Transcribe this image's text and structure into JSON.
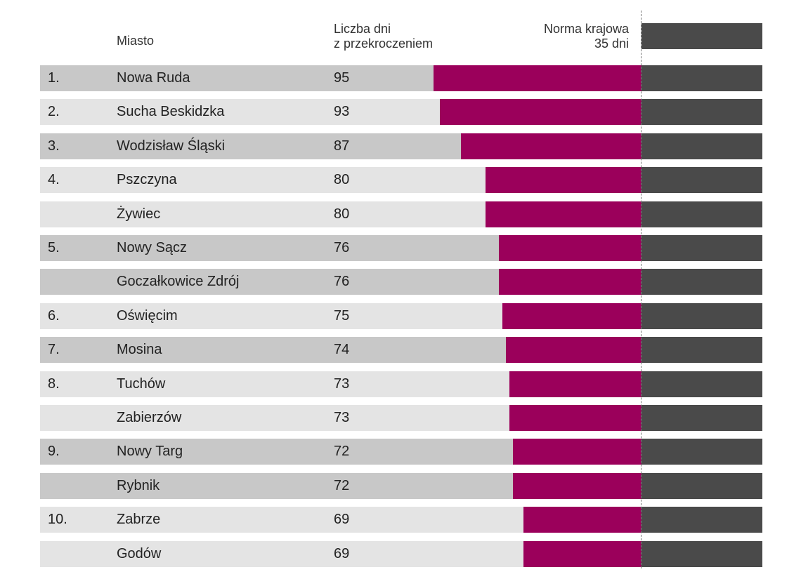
{
  "headers": {
    "city": "Miasto",
    "count": "Liczba dni\nz przekroczeniem",
    "norm": "Norma krajowa\n35 dni"
  },
  "colors": {
    "bar": "#9b005b",
    "norm": "#4a4a4a",
    "row_dark": "#c8c8c8",
    "row_light": "#e4e4e4",
    "reference_line": "#7a7a7a"
  },
  "chart_data": {
    "type": "bar",
    "orientation": "horizontal",
    "title": "",
    "norm_value": 35,
    "norm_label": "Norma krajowa 35 dni",
    "categories": [
      "Nowa Ruda",
      "Sucha Beskidzka",
      "Wodzisław Śląski",
      "Pszczyna",
      "Żywiec",
      "Nowy Sącz",
      "Goczałkowice Zdrój",
      "Oświęcim",
      "Mosina",
      "Tuchów",
      "Zabierzów",
      "Nowy Targ",
      "Rybnik",
      "Zabrze",
      "Godów"
    ],
    "ranks": [
      "1.",
      "2.",
      "3.",
      "4.",
      "",
      "5.",
      "",
      "6.",
      "7.",
      "8.",
      "",
      "9.",
      "",
      "10.",
      ""
    ],
    "values": [
      95,
      93,
      87,
      80,
      80,
      76,
      76,
      75,
      74,
      73,
      73,
      72,
      72,
      69,
      69
    ]
  },
  "rows": [
    {
      "rank": "1.",
      "city": "Nowa Ruda",
      "value": "95",
      "shade": "dark"
    },
    {
      "rank": "2.",
      "city": "Sucha Beskidzka",
      "value": "93",
      "shade": "light"
    },
    {
      "rank": "3.",
      "city": "Wodzisław Śląski",
      "value": "87",
      "shade": "dark"
    },
    {
      "rank": "4.",
      "city": "Pszczyna",
      "value": "80",
      "shade": "light"
    },
    {
      "rank": "",
      "city": "Żywiec",
      "value": "80",
      "shade": "light"
    },
    {
      "rank": "5.",
      "city": "Nowy Sącz",
      "value": "76",
      "shade": "dark"
    },
    {
      "rank": "",
      "city": "Goczałkowice Zdrój",
      "value": "76",
      "shade": "dark"
    },
    {
      "rank": "6.",
      "city": "Oświęcim",
      "value": "75",
      "shade": "light"
    },
    {
      "rank": "7.",
      "city": "Mosina",
      "value": "74",
      "shade": "dark"
    },
    {
      "rank": "8.",
      "city": "Tuchów",
      "value": "73",
      "shade": "light"
    },
    {
      "rank": "",
      "city": "Zabierzów",
      "value": "73",
      "shade": "light"
    },
    {
      "rank": "9.",
      "city": "Nowy Targ",
      "value": "72",
      "shade": "dark"
    },
    {
      "rank": "",
      "city": "Rybnik",
      "value": "72",
      "shade": "dark"
    },
    {
      "rank": "10.",
      "city": "Zabrze",
      "value": "69",
      "shade": "light"
    },
    {
      "rank": "",
      "city": "Godów",
      "value": "69",
      "shade": "light"
    }
  ]
}
